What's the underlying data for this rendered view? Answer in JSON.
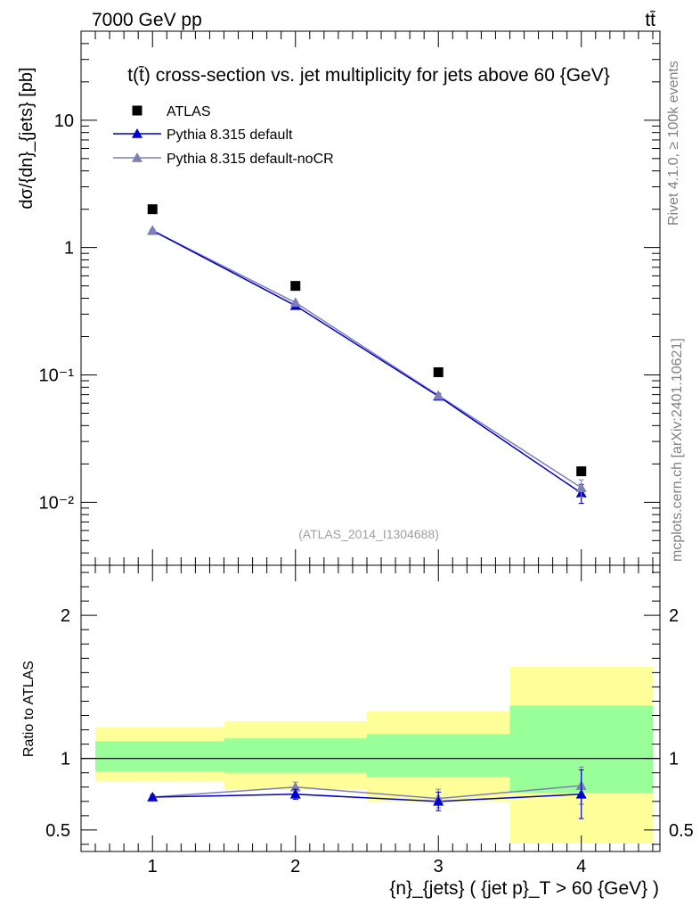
{
  "header": {
    "left": "7000 GeV pp",
    "right": "tt̄"
  },
  "side_labels": {
    "rivet": "Rivet 4.1.0, ≥ 100k events",
    "mcplots": "mcplots.cern.ch [arXiv:2401.10621]"
  },
  "analysis_id": "(ATLAS_2014_I1304688)",
  "colors": {
    "data": "#000000",
    "pythia_default": "#0000cc",
    "pythia_nocr": "#7f7fb8",
    "band_inner": "#99ff99",
    "band_outer": "#ffff99"
  },
  "chart_data": [
    {
      "type": "scatter",
      "title": "t(t̄) cross-section vs. jet multiplicity for jets above 60 {GeV}",
      "ylabel": "dσ/{dn}_{jets} [pb]",
      "yscale": "log",
      "ylim": [
        0.0032,
        50
      ],
      "xlim": [
        0.5,
        4.55
      ],
      "y_ticks": [
        {
          "value": 0.01,
          "label": "10⁻²"
        },
        {
          "value": 0.1,
          "label": "10⁻¹"
        },
        {
          "value": 1,
          "label": "1"
        },
        {
          "value": 10,
          "label": "10"
        }
      ],
      "x": [
        1,
        2,
        3,
        4
      ],
      "series": [
        {
          "name": "ATLAS",
          "marker": "square",
          "values": [
            2.0,
            0.5,
            0.105,
            0.0175
          ]
        },
        {
          "name": "Pythia 8.315 default",
          "marker": "triangle",
          "values": [
            1.36,
            0.35,
            0.068,
            0.0118
          ],
          "errors": [
            0.03,
            0.01,
            0.003,
            0.002
          ]
        },
        {
          "name": "Pythia 8.315 default-noCR",
          "marker": "triangle",
          "values": [
            1.36,
            0.37,
            0.069,
            0.013
          ],
          "errors": [
            0.03,
            0.01,
            0.003,
            0.002
          ]
        }
      ],
      "legend_position": "top-left"
    },
    {
      "type": "line",
      "ylabel": "Ratio to ATLAS",
      "xlabel": "{n}_{jets} ( {jet p}_T > 60 {GeV} )",
      "xlim": [
        0.5,
        4.55
      ],
      "ylim": [
        0.35,
        2.35
      ],
      "x_ticks": [
        {
          "value": 1,
          "label": "1"
        },
        {
          "value": 2,
          "label": "2"
        },
        {
          "value": 3,
          "label": "3"
        },
        {
          "value": 4,
          "label": "4"
        }
      ],
      "y_ticks": [
        {
          "value": 0.5,
          "label": "0.5"
        },
        {
          "value": 1,
          "label": "1"
        },
        {
          "value": 2,
          "label": "2"
        }
      ],
      "bins": [
        [
          0.6,
          1.5
        ],
        [
          1.5,
          2.5
        ],
        [
          2.5,
          3.5
        ],
        [
          3.5,
          4.5
        ]
      ],
      "band_outer": [
        [
          0.84,
          1.22
        ],
        [
          0.78,
          1.26
        ],
        [
          0.7,
          1.33
        ],
        [
          0.41,
          1.64
        ]
      ],
      "band_inner": [
        [
          0.91,
          1.12
        ],
        [
          0.9,
          1.14
        ],
        [
          0.87,
          1.17
        ],
        [
          0.76,
          1.37
        ]
      ],
      "x": [
        1,
        2,
        3,
        4
      ],
      "series": [
        {
          "name": "Pythia 8.315 default",
          "values": [
            0.73,
            0.75,
            0.7,
            0.75
          ],
          "errors": [
            0.015,
            0.035,
            0.065,
            0.17
          ]
        },
        {
          "name": "Pythia 8.315 default-noCR",
          "values": [
            0.73,
            0.8,
            0.72,
            0.81
          ],
          "errors": [
            0.015,
            0.035,
            0.065,
            0.13
          ]
        }
      ]
    }
  ]
}
